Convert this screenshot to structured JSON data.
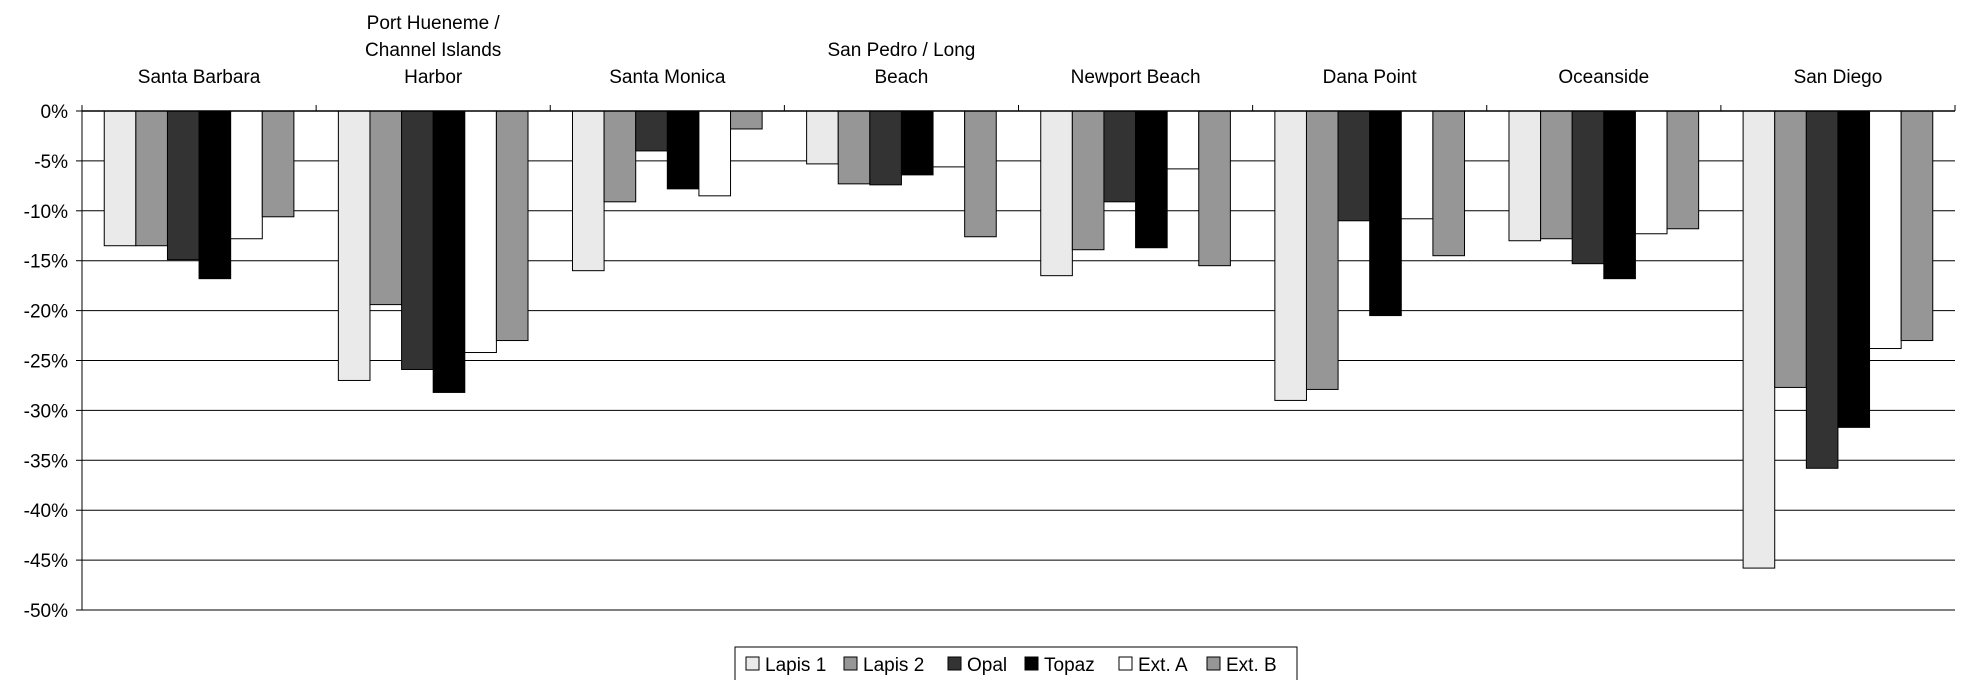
{
  "chart_data": {
    "type": "bar",
    "title": "",
    "xlabel": "",
    "ylabel": "",
    "ylim": [
      -50,
      0
    ],
    "yticks": [
      0,
      -5,
      -10,
      -15,
      -20,
      -25,
      -30,
      -35,
      -40,
      -45,
      -50
    ],
    "ytick_labels": [
      "0%",
      "-5%",
      "-10%",
      "-15%",
      "-20%",
      "-25%",
      "-30%",
      "-35%",
      "-40%",
      "-45%",
      "-50%"
    ],
    "grid": "horizontal",
    "category_axis_position": "top",
    "legend_position": "bottom-center",
    "categories": [
      [
        "Santa Barbara"
      ],
      [
        "Port Hueneme /",
        "Channel  Islands",
        "Harbor"
      ],
      [
        "Santa Monica"
      ],
      [
        "San Pedro / Long",
        "Beach"
      ],
      [
        "Newport Beach"
      ],
      [
        "Dana Point"
      ],
      [
        "Oceanside"
      ],
      [
        "San Diego"
      ]
    ],
    "series": [
      {
        "name": "Lapis 1",
        "color": "#eaeaea",
        "values": [
          -13.5,
          -27.0,
          -16.0,
          -5.3,
          -16.5,
          -29.0,
          -13.0,
          -45.8
        ]
      },
      {
        "name": "Lapis 2",
        "color": "#969696",
        "values": [
          -13.5,
          -19.4,
          -9.1,
          -7.3,
          -13.9,
          -27.9,
          -12.8,
          -27.7
        ]
      },
      {
        "name": "Opal",
        "color": "#333333",
        "values": [
          -14.9,
          -25.9,
          -4.0,
          -7.4,
          -9.1,
          -11.0,
          -15.3,
          -35.8
        ]
      },
      {
        "name": "Topaz",
        "color": "#000000",
        "values": [
          -16.8,
          -28.2,
          -7.8,
          -6.4,
          -13.7,
          -20.5,
          -16.8,
          -31.7
        ]
      },
      {
        "name": "Ext. A",
        "color": "#ffffff",
        "values": [
          -12.8,
          -24.2,
          -8.5,
          -5.6,
          -5.8,
          -10.8,
          -12.3,
          -23.8
        ]
      },
      {
        "name": "Ext. B",
        "color": "#969696",
        "values": [
          -10.6,
          -23.0,
          -1.8,
          -12.6,
          -15.5,
          -14.5,
          -11.8,
          -23.0
        ]
      }
    ]
  }
}
